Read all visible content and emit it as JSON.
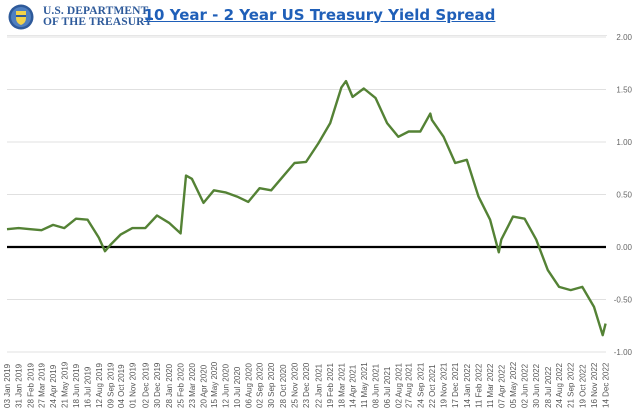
{
  "header": {
    "logo_line1": "U.S. DEPARTMENT",
    "logo_line2": "OF THE TREASURY",
    "title": "10 Year - 2 Year US Treasury Yield Spread"
  },
  "colors": {
    "line": "#548235",
    "zero_line": "#000000",
    "grid": "#e0e0e0",
    "title": "#1f5fb8",
    "logo": "#2e5a9a"
  },
  "chart_data": {
    "type": "line",
    "title": "10 Year - 2 Year US Treasury Yield Spread",
    "xlabel": "",
    "ylabel": "",
    "ylim": [
      -1.0,
      2.0
    ],
    "y_ticks": [
      "2.00",
      "1.50",
      "1.00",
      "0.50",
      "0.00",
      "-0.50",
      "-1.00"
    ],
    "y_tick_values": [
      2.0,
      1.5,
      1.0,
      0.5,
      0.0,
      -0.5,
      -1.0
    ],
    "grid": "horizontal",
    "zero_line": true,
    "x_ticks": [
      "03 Jan 2019",
      "31 Jan 2019",
      "28 Feb 2019",
      "27 Mar 2019",
      "24 Apr 2019",
      "21 May 2019",
      "18 Jun 2019",
      "16 Jul 2019",
      "12 Aug 2019",
      "09 Sep 2019",
      "04 Oct 2019",
      "01 Nov 2019",
      "02 Dec 2019",
      "30 Dec 2019",
      "28 Jan 2020",
      "25 Feb 2020",
      "23 Mar 2020",
      "20 Apr 2020",
      "15 May 2020",
      "12 Jun 2020",
      "10 Jul 2020",
      "06 Aug 2020",
      "02 Sep 2020",
      "30 Sep 2020",
      "28 Oct 2020",
      "25 Nov 2020",
      "23 Dec 2020",
      "22 Jan 2021",
      "19 Feb 2021",
      "18 Mar 2021",
      "14 Apr 2021",
      "11 May 2021",
      "08 Jun 2021",
      "06 Jul 2021",
      "02 Aug 2021",
      "27 Aug 2021",
      "24 Sep 2021",
      "22 Oct 2021",
      "19 Nov 2021",
      "17 Dec 2021",
      "14 Jan 2022",
      "11 Feb 2022",
      "11 Mar 2022",
      "07 Apr 2022",
      "05 May 2022",
      "02 Jun 2022",
      "30 Jun 2022",
      "28 Jul 2022",
      "24 Aug 2022",
      "21 Sep 2022",
      "19 Oct 2022",
      "16 Nov 2022",
      "14 Dec 2022"
    ],
    "series": [
      {
        "x": [
          "2019-01-03",
          "2019-01-31",
          "2019-02-28",
          "2019-03-27",
          "2019-04-24",
          "2019-05-21",
          "2019-06-18",
          "2019-07-16",
          "2019-08-12",
          "2019-08-27",
          "2019-09-09",
          "2019-10-04",
          "2019-11-01",
          "2019-12-02",
          "2019-12-30",
          "2020-01-28",
          "2020-02-25",
          "2020-03-09",
          "2020-03-23",
          "2020-04-20",
          "2020-05-15",
          "2020-06-12",
          "2020-07-10",
          "2020-08-06",
          "2020-09-02",
          "2020-09-30",
          "2020-10-28",
          "2020-11-25",
          "2020-12-23",
          "2021-01-22",
          "2021-02-19",
          "2021-03-18",
          "2021-03-29",
          "2021-04-14",
          "2021-05-11",
          "2021-06-08",
          "2021-07-06",
          "2021-08-02",
          "2021-08-27",
          "2021-09-24",
          "2021-10-18",
          "2021-10-22",
          "2021-11-19",
          "2021-12-17",
          "2022-01-14",
          "2022-02-11",
          "2022-03-11",
          "2022-04-01",
          "2022-04-07",
          "2022-05-05",
          "2022-06-02",
          "2022-06-30",
          "2022-07-28",
          "2022-08-24",
          "2022-09-21",
          "2022-10-19",
          "2022-11-16",
          "2022-12-07",
          "2022-12-14"
        ],
        "y": [
          0.17,
          0.18,
          0.17,
          0.16,
          0.21,
          0.18,
          0.27,
          0.26,
          0.09,
          -0.04,
          0.02,
          0.12,
          0.18,
          0.18,
          0.3,
          0.23,
          0.13,
          0.68,
          0.65,
          0.42,
          0.54,
          0.52,
          0.48,
          0.43,
          0.56,
          0.54,
          0.67,
          0.8,
          0.81,
          0.99,
          1.18,
          1.52,
          1.58,
          1.43,
          1.51,
          1.42,
          1.18,
          1.05,
          1.1,
          1.1,
          1.27,
          1.21,
          1.05,
          0.8,
          0.83,
          0.48,
          0.26,
          -0.05,
          0.07,
          0.29,
          0.27,
          0.07,
          -0.22,
          -0.38,
          -0.41,
          -0.38,
          -0.57,
          -0.84,
          -0.73
        ]
      }
    ]
  }
}
